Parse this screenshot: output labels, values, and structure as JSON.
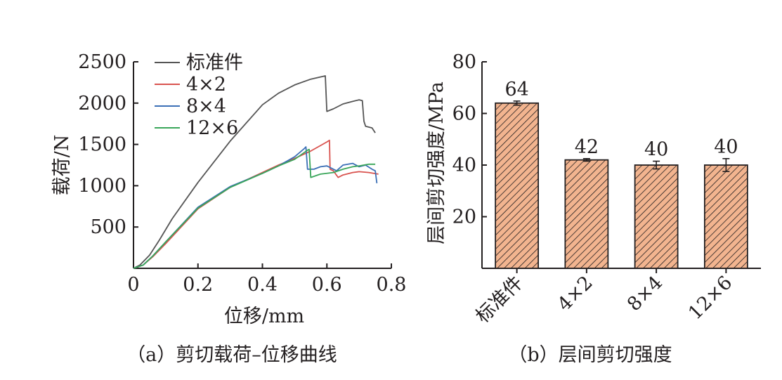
{
  "chart_data": [
    {
      "type": "line",
      "caption": "（a）剪切载荷–位移曲线",
      "xlabel": "位移/mm",
      "ylabel": "载荷/N",
      "xlim": [
        0,
        0.8
      ],
      "ylim": [
        0,
        2500
      ],
      "xticks": [
        "0",
        "0.2",
        "0.4",
        "0.6",
        "0.8"
      ],
      "yticks": [
        "500",
        "1000",
        "1500",
        "2000",
        "2500"
      ],
      "xtick_values": [
        0,
        0.2,
        0.4,
        0.6,
        0.8
      ],
      "ytick_values": [
        500,
        1000,
        1500,
        2000,
        2500
      ],
      "grid": false,
      "legend_position": "top-left",
      "series": [
        {
          "name": "标准件",
          "color": "#555555",
          "points": [
            [
              0,
              0
            ],
            [
              0.02,
              40
            ],
            [
              0.05,
              160
            ],
            [
              0.08,
              340
            ],
            [
              0.12,
              600
            ],
            [
              0.2,
              1040
            ],
            [
              0.3,
              1540
            ],
            [
              0.4,
              1980
            ],
            [
              0.45,
              2120
            ],
            [
              0.5,
              2220
            ],
            [
              0.55,
              2290
            ],
            [
              0.595,
              2330
            ],
            [
              0.6,
              1900
            ],
            [
              0.62,
              1930
            ],
            [
              0.65,
              1990
            ],
            [
              0.68,
              2020
            ],
            [
              0.7,
              2040
            ],
            [
              0.71,
              2030
            ],
            [
              0.715,
              1780
            ],
            [
              0.72,
              1720
            ],
            [
              0.74,
              1700
            ],
            [
              0.75,
              1640
            ]
          ]
        },
        {
          "name": "4×2",
          "color": "#d9534f",
          "points": [
            [
              0,
              0
            ],
            [
              0.03,
              40
            ],
            [
              0.06,
              140
            ],
            [
              0.1,
              300
            ],
            [
              0.2,
              720
            ],
            [
              0.3,
              980
            ],
            [
              0.4,
              1160
            ],
            [
              0.45,
              1250
            ],
            [
              0.5,
              1330
            ],
            [
              0.55,
              1420
            ],
            [
              0.6,
              1530
            ],
            [
              0.608,
              1550
            ],
            [
              0.61,
              1200
            ],
            [
              0.62,
              1180
            ],
            [
              0.635,
              1100
            ],
            [
              0.65,
              1130
            ],
            [
              0.68,
              1160
            ],
            [
              0.7,
              1170
            ],
            [
              0.73,
              1160
            ],
            [
              0.76,
              1140
            ]
          ]
        },
        {
          "name": "8×4",
          "color": "#3b6fb6",
          "points": [
            [
              0,
              0
            ],
            [
              0.03,
              40
            ],
            [
              0.06,
              150
            ],
            [
              0.1,
              320
            ],
            [
              0.2,
              740
            ],
            [
              0.3,
              990
            ],
            [
              0.4,
              1150
            ],
            [
              0.45,
              1240
            ],
            [
              0.5,
              1350
            ],
            [
              0.53,
              1450
            ],
            [
              0.535,
              1470
            ],
            [
              0.54,
              1200
            ],
            [
              0.56,
              1200
            ],
            [
              0.58,
              1230
            ],
            [
              0.6,
              1240
            ],
            [
              0.63,
              1180
            ],
            [
              0.65,
              1250
            ],
            [
              0.68,
              1270
            ],
            [
              0.7,
              1230
            ],
            [
              0.72,
              1250
            ],
            [
              0.74,
              1200
            ],
            [
              0.75,
              1180
            ],
            [
              0.755,
              1030
            ]
          ]
        },
        {
          "name": "12×6",
          "color": "#3aa65a",
          "points": [
            [
              0,
              0
            ],
            [
              0.03,
              40
            ],
            [
              0.06,
              150
            ],
            [
              0.1,
              320
            ],
            [
              0.2,
              730
            ],
            [
              0.3,
              980
            ],
            [
              0.4,
              1150
            ],
            [
              0.45,
              1240
            ],
            [
              0.5,
              1320
            ],
            [
              0.54,
              1430
            ],
            [
              0.545,
              1440
            ],
            [
              0.55,
              1100
            ],
            [
              0.58,
              1140
            ],
            [
              0.62,
              1160
            ],
            [
              0.65,
              1200
            ],
            [
              0.68,
              1230
            ],
            [
              0.7,
              1240
            ],
            [
              0.73,
              1260
            ],
            [
              0.75,
              1260
            ]
          ]
        }
      ]
    },
    {
      "type": "bar",
      "caption": "（b）层间剪切强度",
      "ylabel": "层间剪切强度/MPa",
      "ylim": [
        0,
        80
      ],
      "yticks": [
        "20",
        "40",
        "60",
        "80"
      ],
      "ytick_values": [
        20,
        40,
        60,
        80
      ],
      "categories": [
        "标准件",
        "4×2",
        "8×4",
        "12×6"
      ],
      "values": [
        64,
        42,
        40,
        40
      ],
      "value_labels": [
        "64",
        "42",
        "40",
        "40"
      ],
      "errors": [
        0.8,
        0.5,
        1.5,
        2.5
      ],
      "bar_fill": "#f2b48f",
      "hatch_color": "#231f20"
    }
  ]
}
